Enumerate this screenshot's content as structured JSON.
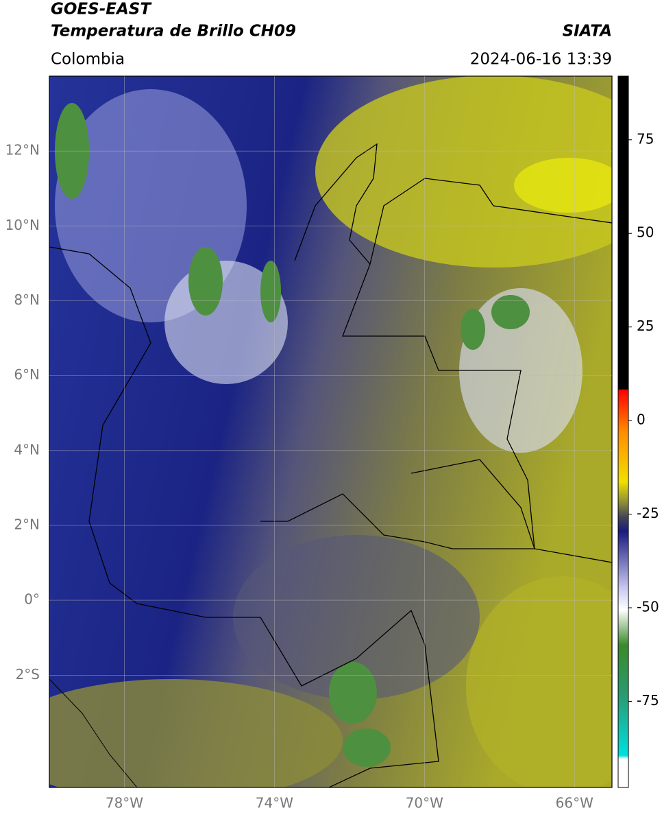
{
  "header": {
    "title": "GOES-EAST",
    "subtitle": "Temperatura de Brillo CH09",
    "source": "SIATA",
    "region": "Colombia",
    "timestamp": "2024-06-16 13:39"
  },
  "map": {
    "xlim": [
      -80,
      -65
    ],
    "ylim": [
      -5,
      14
    ],
    "lat_ticks": [
      {
        "value": 12,
        "label": "12°N"
      },
      {
        "value": 10,
        "label": "10°N"
      },
      {
        "value": 8,
        "label": "8°N"
      },
      {
        "value": 6,
        "label": "6°N"
      },
      {
        "value": 4,
        "label": "4°N"
      },
      {
        "value": 2,
        "label": "2°N"
      },
      {
        "value": 0,
        "label": "0°"
      },
      {
        "value": -2,
        "label": "2°S"
      }
    ],
    "lon_ticks": [
      {
        "value": -78,
        "label": "78°W"
      },
      {
        "value": -74,
        "label": "74°W"
      },
      {
        "value": -70,
        "label": "70°W"
      },
      {
        "value": -66,
        "label": "66°W"
      }
    ]
  },
  "colorbar": {
    "lim": [
      -98,
      92
    ],
    "ticks": [
      75,
      50,
      25,
      0,
      -25,
      -50,
      -75
    ]
  }
}
